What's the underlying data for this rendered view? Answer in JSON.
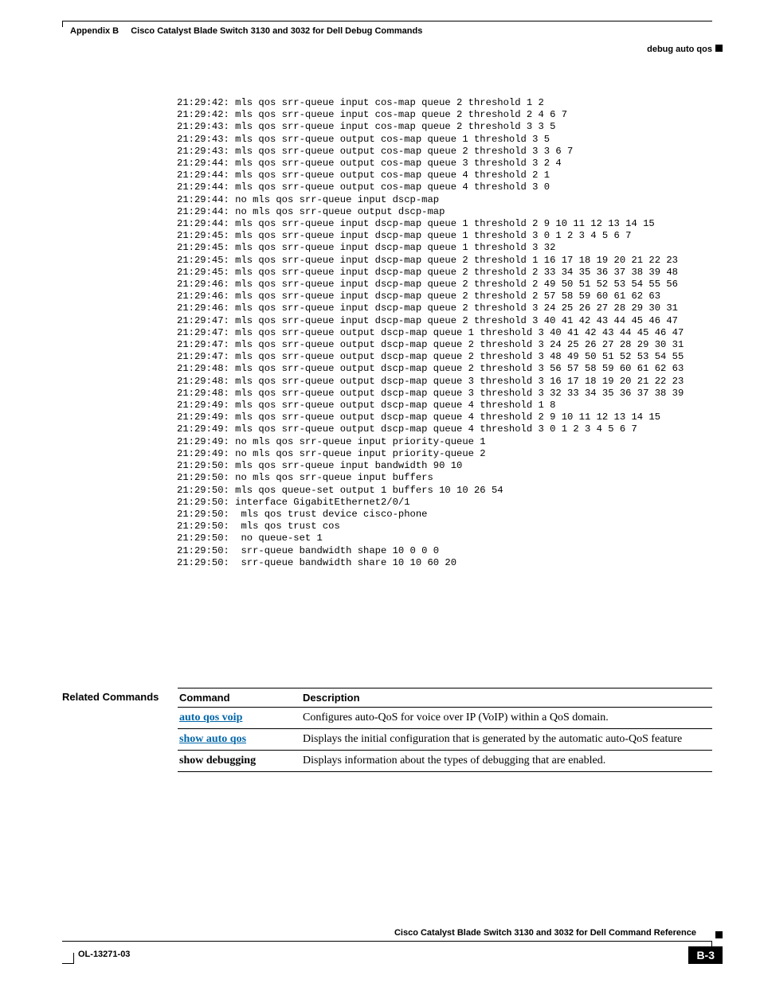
{
  "header": {
    "chapter_label": "Appendix B",
    "chapter_title": "Cisco Catalyst Blade Switch 3130 and 3032 for Dell Debug Commands",
    "section": "debug auto qos"
  },
  "code_lines": [
    "21:29:42: mls qos srr-queue input cos-map queue 2 threshold 1 2",
    "21:29:42: mls qos srr-queue input cos-map queue 2 threshold 2 4 6 7",
    "21:29:43: mls qos srr-queue input cos-map queue 2 threshold 3 3 5",
    "21:29:43: mls qos srr-queue output cos-map queue 1 threshold 3 5",
    "21:29:43: mls qos srr-queue output cos-map queue 2 threshold 3 3 6 7",
    "21:29:44: mls qos srr-queue output cos-map queue 3 threshold 3 2 4",
    "21:29:44: mls qos srr-queue output cos-map queue 4 threshold 2 1",
    "21:29:44: mls qos srr-queue output cos-map queue 4 threshold 3 0",
    "21:29:44: no mls qos srr-queue input dscp-map",
    "21:29:44: no mls qos srr-queue output dscp-map",
    "21:29:44: mls qos srr-queue input dscp-map queue 1 threshold 2 9 10 11 12 13 14 15",
    "21:29:45: mls qos srr-queue input dscp-map queue 1 threshold 3 0 1 2 3 4 5 6 7",
    "21:29:45: mls qos srr-queue input dscp-map queue 1 threshold 3 32",
    "21:29:45: mls qos srr-queue input dscp-map queue 2 threshold 1 16 17 18 19 20 21 22 23",
    "21:29:45: mls qos srr-queue input dscp-map queue 2 threshold 2 33 34 35 36 37 38 39 48",
    "21:29:46: mls qos srr-queue input dscp-map queue 2 threshold 2 49 50 51 52 53 54 55 56",
    "21:29:46: mls qos srr-queue input dscp-map queue 2 threshold 2 57 58 59 60 61 62 63",
    "21:29:46: mls qos srr-queue input dscp-map queue 2 threshold 3 24 25 26 27 28 29 30 31",
    "21:29:47: mls qos srr-queue input dscp-map queue 2 threshold 3 40 41 42 43 44 45 46 47",
    "21:29:47: mls qos srr-queue output dscp-map queue 1 threshold 3 40 41 42 43 44 45 46 47",
    "21:29:47: mls qos srr-queue output dscp-map queue 2 threshold 3 24 25 26 27 28 29 30 31",
    "21:29:47: mls qos srr-queue output dscp-map queue 2 threshold 3 48 49 50 51 52 53 54 55",
    "21:29:48: mls qos srr-queue output dscp-map queue 2 threshold 3 56 57 58 59 60 61 62 63",
    "21:29:48: mls qos srr-queue output dscp-map queue 3 threshold 3 16 17 18 19 20 21 22 23",
    "21:29:48: mls qos srr-queue output dscp-map queue 3 threshold 3 32 33 34 35 36 37 38 39",
    "21:29:49: mls qos srr-queue output dscp-map queue 4 threshold 1 8",
    "21:29:49: mls qos srr-queue output dscp-map queue 4 threshold 2 9 10 11 12 13 14 15",
    "21:29:49: mls qos srr-queue output dscp-map queue 4 threshold 3 0 1 2 3 4 5 6 7",
    "21:29:49: no mls qos srr-queue input priority-queue 1",
    "21:29:49: no mls qos srr-queue input priority-queue 2",
    "21:29:50: mls qos srr-queue input bandwidth 90 10",
    "21:29:50: no mls qos srr-queue input buffers",
    "21:29:50: mls qos queue-set output 1 buffers 10 10 26 54",
    "21:29:50: interface GigabitEthernet2/0/1",
    "21:29:50:  mls qos trust device cisco-phone",
    "21:29:50:  mls qos trust cos",
    "21:29:50:  no queue-set 1",
    "21:29:50:  srr-queue bandwidth shape 10 0 0 0",
    "21:29:50:  srr-queue bandwidth share 10 10 60 20"
  ],
  "related": {
    "section_label": "Related Commands",
    "col_command": "Command",
    "col_description": "Description",
    "rows": [
      {
        "cmd": "auto qos voip",
        "link": true,
        "desc": "Configures auto-QoS for voice over IP (VoIP) within a QoS domain."
      },
      {
        "cmd": "show auto qos",
        "link": true,
        "desc": "Displays the initial configuration that is generated by the automatic auto-QoS feature"
      },
      {
        "cmd": "show debugging",
        "link": false,
        "desc": "Displays information about the types of debugging that are enabled."
      }
    ]
  },
  "footer": {
    "book_title": "Cisco Catalyst Blade Switch 3130 and 3032 for Dell Command Reference",
    "doc_number": "OL-13271-03",
    "page_number": "B-3"
  }
}
